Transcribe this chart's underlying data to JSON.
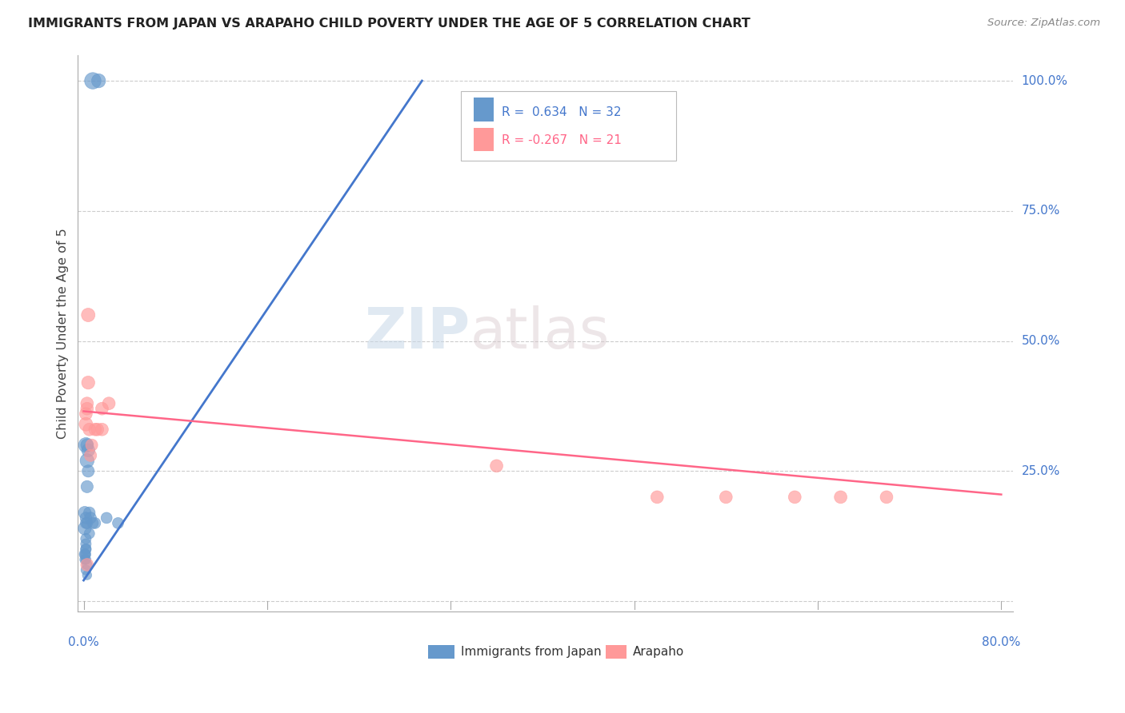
{
  "title": "IMMIGRANTS FROM JAPAN VS ARAPAHO CHILD POVERTY UNDER THE AGE OF 5 CORRELATION CHART",
  "source": "Source: ZipAtlas.com",
  "ylabel": "Child Poverty Under the Age of 5",
  "blue_R": 0.634,
  "blue_N": 32,
  "pink_R": -0.267,
  "pink_N": 21,
  "blue_color": "#6699CC",
  "pink_color": "#FF9999",
  "blue_line_color": "#4477CC",
  "pink_line_color": "#FF6688",
  "watermark_zip": "ZIP",
  "watermark_atlas": "atlas",
  "xmin": 0.0,
  "xmax": 0.8,
  "ymin": 0.0,
  "ymax": 1.0,
  "ytick_vals": [
    0.0,
    0.25,
    0.5,
    0.75,
    1.0
  ],
  "ytick_labels": [
    "",
    "25.0%",
    "50.0%",
    "75.0%",
    "100.0%"
  ],
  "xtick_vals": [
    0.0,
    0.16,
    0.32,
    0.48,
    0.64,
    0.8
  ],
  "blue_scatter_x": [
    0.008,
    0.013,
    0.002,
    0.003,
    0.001,
    0.002,
    0.003,
    0.004,
    0.004,
    0.003,
    0.005,
    0.006,
    0.005,
    0.002,
    0.002,
    0.002,
    0.003,
    0.003,
    0.002,
    0.002,
    0.001,
    0.003,
    0.002,
    0.001,
    0.01,
    0.008,
    0.03,
    0.02,
    0.002,
    0.001,
    0.001,
    0.002
  ],
  "blue_scatter_y": [
    1.0,
    1.0,
    0.3,
    0.27,
    0.17,
    0.16,
    0.3,
    0.29,
    0.25,
    0.22,
    0.17,
    0.16,
    0.13,
    0.15,
    0.1,
    0.1,
    0.07,
    0.05,
    0.11,
    0.12,
    0.14,
    0.15,
    0.06,
    0.09,
    0.15,
    0.15,
    0.15,
    0.16,
    0.09,
    0.09,
    0.08,
    0.08
  ],
  "blue_scatter_sizes": [
    220,
    160,
    180,
    160,
    130,
    110,
    130,
    140,
    120,
    120,
    110,
    110,
    90,
    100,
    90,
    90,
    80,
    70,
    90,
    90,
    140,
    100,
    80,
    100,
    100,
    100,
    100,
    100,
    80,
    80,
    80,
    80
  ],
  "pink_scatter_x": [
    0.002,
    0.003,
    0.004,
    0.006,
    0.003,
    0.002,
    0.004,
    0.005,
    0.007,
    0.01,
    0.012,
    0.016,
    0.016,
    0.022,
    0.003,
    0.36,
    0.5,
    0.56,
    0.62,
    0.7,
    0.66
  ],
  "pink_scatter_y": [
    0.34,
    0.37,
    0.42,
    0.28,
    0.38,
    0.36,
    0.55,
    0.33,
    0.3,
    0.33,
    0.33,
    0.37,
    0.33,
    0.38,
    0.07,
    0.26,
    0.2,
    0.2,
    0.2,
    0.2,
    0.2
  ],
  "pink_scatter_sizes": [
    150,
    130,
    140,
    120,
    130,
    130,
    150,
    130,
    120,
    130,
    130,
    130,
    130,
    130,
    130,
    130,
    130,
    130,
    130,
    130,
    130
  ],
  "blue_line_x": [
    0.0,
    0.295
  ],
  "blue_line_y": [
    0.04,
    1.0
  ],
  "pink_line_x": [
    0.0,
    0.8
  ],
  "pink_line_y": [
    0.365,
    0.205
  ]
}
